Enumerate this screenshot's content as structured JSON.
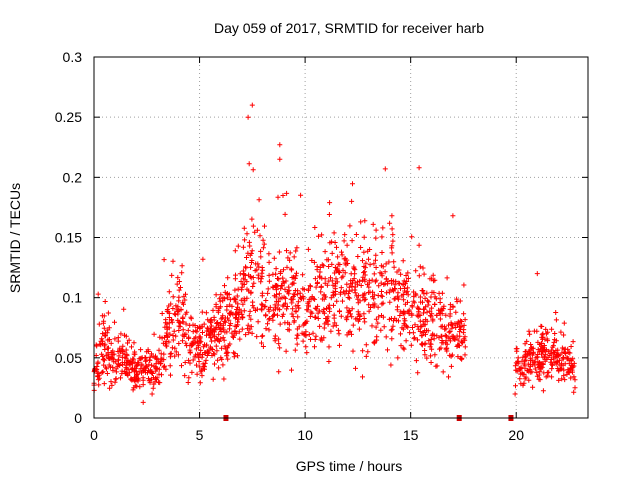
{
  "chart_data": {
    "type": "scatter",
    "title": "Day 059 of 2017, SRMTID for receiver harb",
    "xlabel": "GPS time / hours",
    "ylabel": "SRMTID / TECUs",
    "xlim": [
      0,
      23.4
    ],
    "ylim": [
      0,
      0.3
    ],
    "x_ticks": [
      0,
      5,
      10,
      15,
      20
    ],
    "x_tick_labels": [
      "0",
      "5",
      "10",
      "15",
      "20"
    ],
    "y_ticks": [
      0,
      0.05,
      0.1,
      0.15,
      0.2,
      0.25,
      0.3
    ],
    "y_tick_labels": [
      "0",
      "0.05",
      "0.1",
      "0.15",
      "0.2",
      "0.25",
      "0.3"
    ],
    "grid": true,
    "marker": "+",
    "color": "#ff0000",
    "gap_marks_x": [
      6.25,
      17.3,
      19.75
    ],
    "gap_ranges_hours": [
      [
        17.6,
        19.9
      ]
    ],
    "series": [
      {
        "name": "SRMTID",
        "profile_hours": [
          0.0,
          0.5,
          1.0,
          2.0,
          3.0,
          3.5,
          4.0,
          4.5,
          5.0,
          6.0,
          7.0,
          7.5,
          8.0,
          9.0,
          10.0,
          11.0,
          12.0,
          13.0,
          14.0,
          15.0,
          16.0,
          17.0,
          17.5,
          19.9,
          21.0,
          22.0,
          22.8
        ],
        "profile_mean": [
          0.04,
          0.06,
          0.05,
          0.04,
          0.04,
          0.07,
          0.09,
          0.06,
          0.06,
          0.07,
          0.09,
          0.12,
          0.1,
          0.1,
          0.09,
          0.1,
          0.11,
          0.1,
          0.1,
          0.09,
          0.08,
          0.07,
          0.07,
          0.04,
          0.05,
          0.05,
          0.04
        ],
        "peaks": [
          [
            7.5,
            0.26
          ],
          [
            7.3,
            0.25
          ],
          [
            8.8,
            0.227
          ],
          [
            8.8,
            0.215
          ],
          [
            13.8,
            0.207
          ],
          [
            15.4,
            0.208
          ],
          [
            17.0,
            0.168
          ],
          [
            12.2,
            0.18
          ],
          [
            21.0,
            0.12
          ],
          [
            0.2,
            0.103
          ]
        ],
        "n_points": 2000,
        "min": 0.013,
        "max": 0.26
      }
    ]
  }
}
